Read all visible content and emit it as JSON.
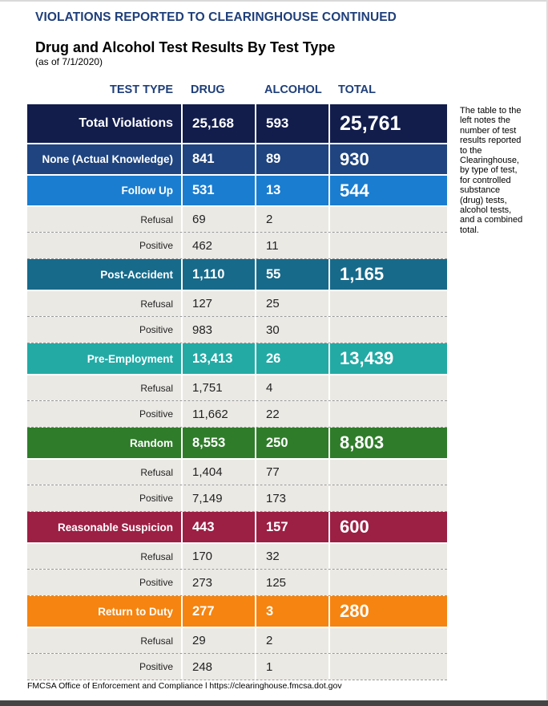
{
  "header": {
    "section_title": "VIOLATIONS REPORTED TO CLEARINGHOUSE CONTINUED",
    "title": "Drug and Alcohol Test Results By Test Type",
    "subtitle": "(as of 7/1/2020)"
  },
  "columns": {
    "type": "TEST TYPE",
    "drug": "DRUG",
    "alcohol": "ALCOHOL",
    "total": "TOTAL"
  },
  "rows": [
    {
      "kind": "cat",
      "label": "Total Violations",
      "drug": "25,168",
      "alcohol": "593",
      "total": "25,761",
      "color": "#121d4c"
    },
    {
      "kind": "cat",
      "label": "None (Actual Knowledge)",
      "drug": "841",
      "alcohol": "89",
      "total": "930",
      "color": "#1f447f"
    },
    {
      "kind": "cat",
      "label": "Follow Up",
      "drug": "531",
      "alcohol": "13",
      "total": "544",
      "color": "#1a7dd0"
    },
    {
      "kind": "sub",
      "label": "Refusal",
      "drug": "69",
      "alcohol": "2",
      "total": ""
    },
    {
      "kind": "sub",
      "label": "Positive",
      "drug": "462",
      "alcohol": "11",
      "total": ""
    },
    {
      "kind": "cat",
      "label": "Post-Accident",
      "drug": "1,110",
      "alcohol": "55",
      "total": "1,165",
      "color": "#176a8a"
    },
    {
      "kind": "sub",
      "label": "Refusal",
      "drug": "127",
      "alcohol": "25",
      "total": ""
    },
    {
      "kind": "sub",
      "label": "Positive",
      "drug": "983",
      "alcohol": "30",
      "total": ""
    },
    {
      "kind": "cat",
      "label": "Pre-Employment",
      "drug": "13,413",
      "alcohol": "26",
      "total": "13,439",
      "color": "#23aaa5"
    },
    {
      "kind": "sub",
      "label": "Refusal",
      "drug": "1,751",
      "alcohol": "4",
      "total": ""
    },
    {
      "kind": "sub",
      "label": "Positive",
      "drug": "11,662",
      "alcohol": "22",
      "total": ""
    },
    {
      "kind": "cat",
      "label": "Random",
      "drug": "8,553",
      "alcohol": "250",
      "total": "8,803",
      "color": "#2f7c2a"
    },
    {
      "kind": "sub",
      "label": "Refusal",
      "drug": "1,404",
      "alcohol": "77",
      "total": ""
    },
    {
      "kind": "sub",
      "label": "Positive",
      "drug": "7,149",
      "alcohol": "173",
      "total": ""
    },
    {
      "kind": "cat",
      "label": "Reasonable Suspicion",
      "drug": "443",
      "alcohol": "157",
      "total": "600",
      "color": "#9c1f44"
    },
    {
      "kind": "sub",
      "label": "Refusal",
      "drug": "170",
      "alcohol": "32",
      "total": ""
    },
    {
      "kind": "sub",
      "label": "Positive",
      "drug": "273",
      "alcohol": "125",
      "total": ""
    },
    {
      "kind": "cat",
      "label": "Return to Duty",
      "drug": "277",
      "alcohol": "3",
      "total": "280",
      "color": "#f58410"
    },
    {
      "kind": "sub",
      "label": "Refusal",
      "drug": "29",
      "alcohol": "2",
      "total": ""
    },
    {
      "kind": "sub",
      "label": "Positive",
      "drug": "248",
      "alcohol": "1",
      "total": ""
    }
  ],
  "side_note": "The table to the left notes the number of test results reported to the Clearinghouse, by type of test, for controlled substance (drug) tests, alcohol tests, and a combined total.",
  "footer": "FMCSA Office of Enforcement and Compliance l https://clearinghouse.fmcsa.dot.gov"
}
